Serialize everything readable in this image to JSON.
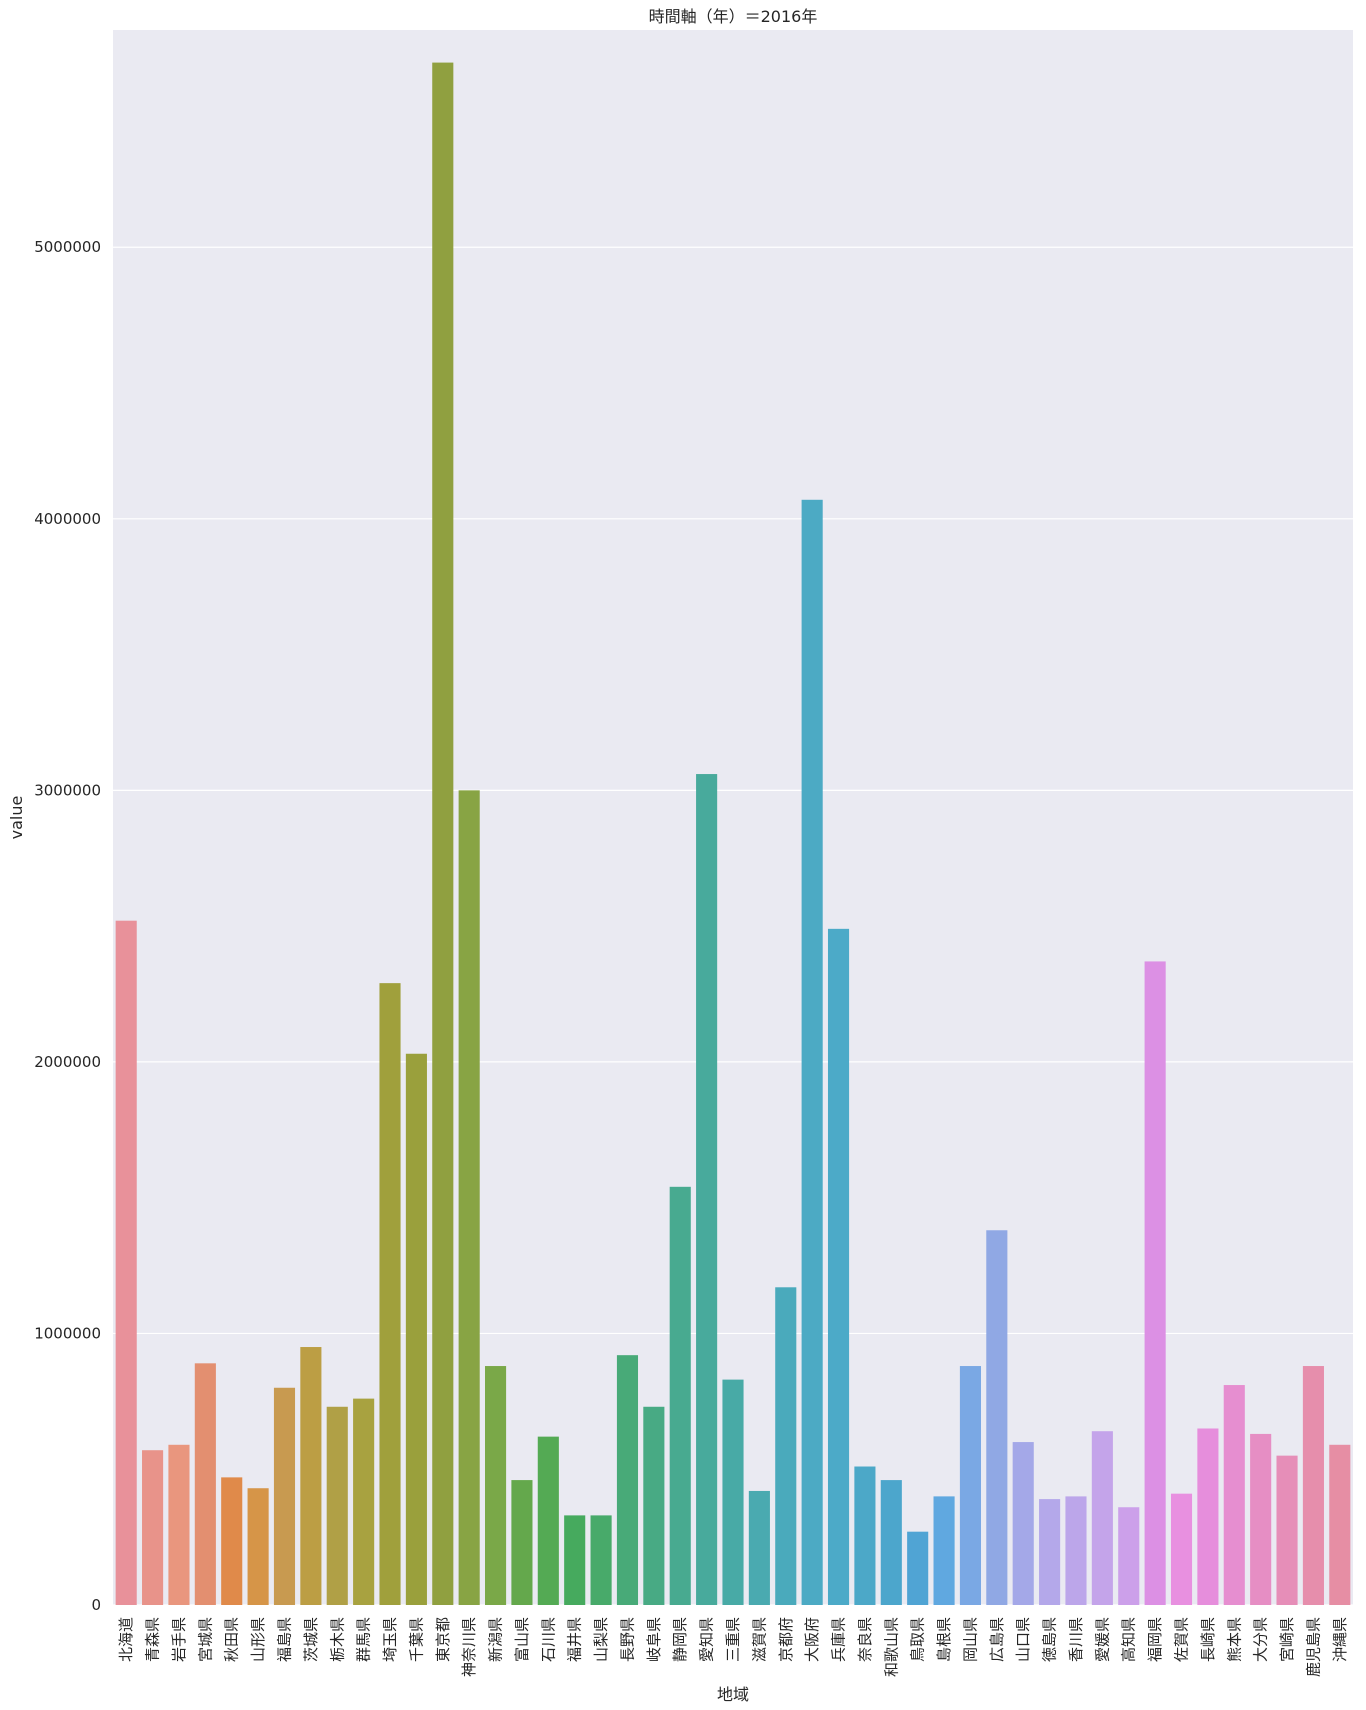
{
  "chart_data": {
    "type": "bar",
    "title": "時間軸（年）＝2016年",
    "xlabel": "地域",
    "ylabel": "value",
    "ylim": [
      0,
      5800000
    ],
    "yticks": [
      0,
      1000000,
      2000000,
      3000000,
      4000000,
      5000000
    ],
    "ytick_labels": [
      "0",
      "1000000",
      "2000000",
      "3000000",
      "4000000",
      "5000000"
    ],
    "grid": true,
    "categories": [
      "北海道",
      "青森県",
      "岩手県",
      "宮城県",
      "秋田県",
      "山形県",
      "福島県",
      "茨城県",
      "栃木県",
      "群馬県",
      "埼玉県",
      "千葉県",
      "東京都",
      "神奈川県",
      "新潟県",
      "富山県",
      "石川県",
      "福井県",
      "山梨県",
      "長野県",
      "岐阜県",
      "静岡県",
      "愛知県",
      "三重県",
      "滋賀県",
      "京都府",
      "大阪府",
      "兵庫県",
      "奈良県",
      "和歌山県",
      "鳥取県",
      "島根県",
      "岡山県",
      "広島県",
      "山口県",
      "徳島県",
      "香川県",
      "愛媛県",
      "高知県",
      "福岡県",
      "佐賀県",
      "長崎県",
      "熊本県",
      "大分県",
      "宮崎県",
      "鹿児島県",
      "沖縄県"
    ],
    "values": [
      2520000,
      570000,
      590000,
      890000,
      470000,
      430000,
      800000,
      950000,
      730000,
      760000,
      2290000,
      2030000,
      5680000,
      3000000,
      880000,
      460000,
      620000,
      330000,
      330000,
      920000,
      730000,
      1540000,
      3060000,
      830000,
      420000,
      1170000,
      4070000,
      2490000,
      510000,
      460000,
      270000,
      400000,
      880000,
      1380000,
      600000,
      390000,
      400000,
      640000,
      360000,
      2370000,
      410000,
      650000,
      810000,
      630000,
      550000,
      880000,
      590000
    ],
    "colors": [
      "#e8919a",
      "#e8938a",
      "#e9967e",
      "#e38f70",
      "#e08a4a",
      "#d69548",
      "#c89a50",
      "#bc9e44",
      "#b0a046",
      "#a8a240",
      "#a0a03c",
      "#9aa03c",
      "#90a040",
      "#88a444",
      "#7aa848",
      "#64a84c",
      "#54aa54",
      "#46aa5e",
      "#48aa6a",
      "#48aa78",
      "#48aa84",
      "#48aa90",
      "#48aa9c",
      "#48aaa6",
      "#4aaab0",
      "#4aaabc",
      "#4caac4",
      "#4caac8",
      "#4ca8c8",
      "#4ca6cc",
      "#50a4d4",
      "#60a8e0",
      "#7aa8e4",
      "#90a8e4",
      "#a4a8e8",
      "#b4a8ea",
      "#bca6ea",
      "#c4a4ea",
      "#cca0ea",
      "#dc90e4",
      "#e890e0",
      "#e68edc",
      "#e68ed0",
      "#e68ec4",
      "#e68eb8",
      "#e68eac",
      "#e68ea4"
    ]
  }
}
